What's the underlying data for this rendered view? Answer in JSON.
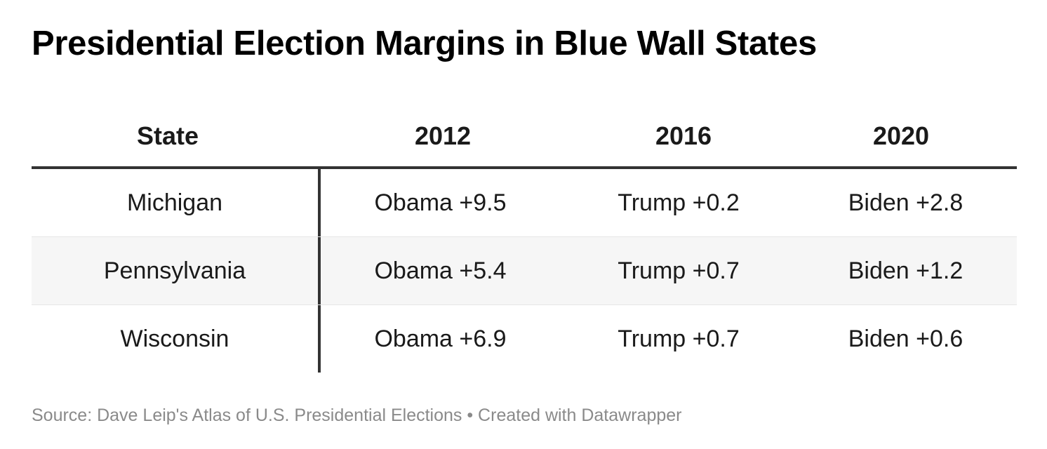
{
  "chart_data": {
    "type": "table",
    "title": "Presidential Election Margins in Blue Wall States",
    "columns": [
      "State",
      "2012",
      "2016",
      "2020"
    ],
    "rows": [
      {
        "state": "Michigan",
        "y2012": "Obama +9.5",
        "y2016": "Trump +0.2",
        "y2020": "Biden +2.8"
      },
      {
        "state": "Pennsylvania",
        "y2012": "Obama +5.4",
        "y2016": "Trump +0.7",
        "y2020": "Biden +1.2"
      },
      {
        "state": "Wisconsin",
        "y2012": "Obama +6.9",
        "y2016": "Trump +0.7",
        "y2020": "Biden +0.6"
      }
    ],
    "source": "Source: Dave Leip's Atlas of U.S. Presidential Elections • Created with Datawrapper"
  },
  "colors": {
    "text": "#1a1a1a",
    "rule": "#333333",
    "row_shade": "#f6f6f6",
    "source_text": "#8a8a8a"
  }
}
